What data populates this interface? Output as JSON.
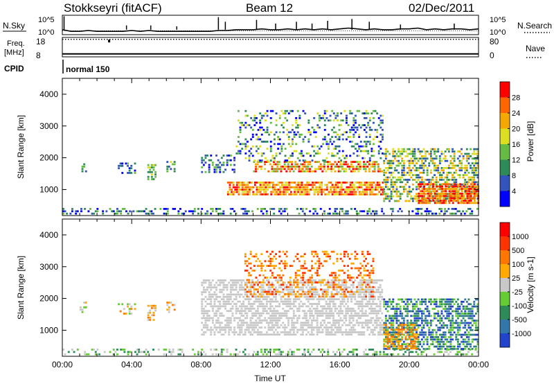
{
  "header": {
    "station": "Stokkseyri (fitACF)",
    "beam": "Beam 12",
    "date": "02/Dec/2011"
  },
  "chart_data": [
    {
      "type": "line",
      "panel": "noise",
      "labels": {
        "left_main": "N.Sky",
        "right_main": "N.Search",
        "left_top_tick": "10^5",
        "left_bottom_tick": "10^0",
        "right_top_tick": "10^5",
        "right_bottom_tick": "10^0"
      },
      "series": [
        {
          "x": [
            0,
            0.5,
            1,
            1.5,
            2,
            2.5,
            3,
            3.5,
            4,
            4.5,
            5,
            5.5,
            6,
            6.5,
            7,
            7.5,
            8,
            8.5,
            9,
            9.5,
            10,
            10.5,
            11,
            11.5,
            12,
            12.5,
            13,
            13.5,
            14,
            14.5,
            15,
            15.5,
            16,
            16.5,
            17,
            17.5,
            18,
            18.5,
            19,
            19.5,
            20,
            20.5,
            21,
            21.5,
            22,
            22.5,
            23,
            23.5,
            24
          ],
          "y": [
            0.3,
            0.2,
            0.2,
            0.25,
            0.2,
            0.2,
            0.2,
            0.2,
            0.25,
            0.2,
            0.25,
            0.2,
            0.2,
            0.2,
            0.2,
            0.2,
            0.2,
            0.2,
            0.25,
            0.25,
            0.3,
            0.3,
            0.3,
            0.35,
            0.3,
            0.3,
            0.35,
            0.3,
            0.35,
            0.3,
            0.35,
            0.3,
            0.35,
            0.4,
            0.35,
            0.3,
            0.35,
            0.3,
            0.3,
            0.35,
            0.35,
            0.4,
            0.3,
            0.35,
            0.3,
            0.35,
            0.35,
            0.3,
            0.35
          ]
        }
      ],
      "spikes": [
        {
          "x": 0.1,
          "y": 1.0
        },
        {
          "x": 3.7,
          "y": 0.5
        },
        {
          "x": 5.1,
          "y": 0.5
        },
        {
          "x": 6.6,
          "y": 0.45
        },
        {
          "x": 9.0,
          "y": 0.95
        },
        {
          "x": 9.4,
          "y": 0.7
        },
        {
          "x": 11.2,
          "y": 0.8
        },
        {
          "x": 12.3,
          "y": 0.6
        },
        {
          "x": 13.5,
          "y": 0.7
        },
        {
          "x": 14.4,
          "y": 0.6
        },
        {
          "x": 15.3,
          "y": 0.75
        },
        {
          "x": 16.7,
          "y": 0.85
        },
        {
          "x": 17.7,
          "y": 0.7
        },
        {
          "x": 19.5,
          "y": 0.55
        },
        {
          "x": 22.6,
          "y": 0.6
        }
      ]
    },
    {
      "type": "line",
      "panel": "frequency",
      "labels": {
        "left_main": "Freq.",
        "left_unit": "[MHz]",
        "right_main": "Nave",
        "left_top_tick": "18",
        "left_bottom_tick": "8",
        "right_top_tick": "80",
        "right_bottom_tick": "0"
      },
      "series": [
        {
          "name": "frequency",
          "x": [
            0,
            24
          ],
          "y": [
            9.5,
            9.5
          ]
        },
        {
          "name": "nave",
          "x": [
            0,
            24
          ],
          "y": [
            78,
            78
          ]
        }
      ],
      "outliers": [
        {
          "x": 2.7,
          "y": 16.5
        }
      ]
    },
    {
      "type": "table",
      "panel": "cpid",
      "labels": {
        "left_main": "CPID"
      },
      "segments": [
        {
          "start": 0,
          "end": 24,
          "label": "normal 150"
        }
      ]
    },
    {
      "type": "heatmap",
      "panel": "power",
      "ylabel": "Slant Range [km]",
      "ylim": [
        180,
        4500
      ],
      "yticks": [
        "1000",
        "2000",
        "3000",
        "4000"
      ],
      "xlim": [
        0,
        24
      ],
      "colorbar": {
        "label": "Power [dB]",
        "ticks": [
          "4",
          "8",
          "12",
          "16",
          "20",
          "24",
          "28"
        ],
        "colors": [
          "#0000ff",
          "#3355bb",
          "#2e8b57",
          "#66bb44",
          "#dddd22",
          "#f5a800",
          "#ff6600",
          "#ff0000"
        ]
      },
      "regions": [
        {
          "x0": 0,
          "x1": 24,
          "r0": 180,
          "r1": 420,
          "density": 0.35,
          "level_min": 0,
          "level_max": 3
        },
        {
          "x0": 1.0,
          "x1": 1.4,
          "r0": 1500,
          "r1": 1900,
          "density": 0.45,
          "level_min": 1,
          "level_max": 3
        },
        {
          "x0": 3.2,
          "x1": 4.2,
          "r0": 1500,
          "r1": 1850,
          "density": 0.4,
          "level_min": 0,
          "level_max": 3
        },
        {
          "x0": 4.9,
          "x1": 5.4,
          "r0": 1250,
          "r1": 1800,
          "density": 0.6,
          "level_min": 2,
          "level_max": 4
        },
        {
          "x0": 6.0,
          "x1": 6.5,
          "r0": 1500,
          "r1": 1900,
          "density": 0.5,
          "level_min": 1,
          "level_max": 4
        },
        {
          "x0": 8.0,
          "x1": 10.0,
          "r0": 1500,
          "r1": 2100,
          "density": 0.35,
          "level_min": 0,
          "level_max": 3
        },
        {
          "x0": 9.5,
          "x1": 18.5,
          "r0": 800,
          "r1": 1250,
          "density": 0.75,
          "level_min": 4,
          "level_max": 7
        },
        {
          "x0": 11.0,
          "x1": 18.5,
          "r0": 1550,
          "r1": 1900,
          "density": 0.65,
          "level_min": 3,
          "level_max": 7
        },
        {
          "x0": 10.0,
          "x1": 18.5,
          "r0": 1900,
          "r1": 3500,
          "density": 0.25,
          "level_min": 0,
          "level_max": 4
        },
        {
          "x0": 18.5,
          "x1": 24,
          "r0": 600,
          "r1": 2300,
          "density": 0.55,
          "level_min": 1,
          "level_max": 5
        },
        {
          "x0": 20.5,
          "x1": 24,
          "r0": 500,
          "r1": 1200,
          "density": 0.8,
          "level_min": 5,
          "level_max": 7
        }
      ]
    },
    {
      "type": "heatmap",
      "panel": "velocity",
      "ylabel": "Slant Range [km]",
      "xlabel": "Time UT",
      "ylim": [
        180,
        4500
      ],
      "yticks": [
        "1000",
        "2000",
        "3000",
        "4000"
      ],
      "xlim": [
        0,
        24
      ],
      "xticks": [
        "00:00",
        "04:00",
        "08:00",
        "12:00",
        "16:00",
        "20:00",
        "00:00"
      ],
      "colorbar": {
        "label": "Velocity [m s-1]",
        "ticks": [
          "1000",
          "500",
          "100",
          "25",
          "-25",
          "-100",
          "-500",
          "-1000"
        ],
        "colors": [
          "#2244cc",
          "#3377aa",
          "#2e8b57",
          "#66cc33",
          "#c8c8c8",
          "#ffaa00",
          "#ff7700",
          "#ff3300",
          "#ff0000"
        ]
      },
      "regions": [
        {
          "x0": 0,
          "x1": 24,
          "r0": 180,
          "r1": 420,
          "density": 0.3,
          "level_min": 2,
          "level_max": 4
        },
        {
          "x0": 1.0,
          "x1": 1.4,
          "r0": 1500,
          "r1": 1900,
          "density": 0.45,
          "level_min": 3,
          "level_max": 5
        },
        {
          "x0": 3.2,
          "x1": 4.2,
          "r0": 1500,
          "r1": 1850,
          "density": 0.4,
          "level_min": 3,
          "level_max": 6
        },
        {
          "x0": 4.9,
          "x1": 5.4,
          "r0": 1250,
          "r1": 1800,
          "density": 0.5,
          "level_min": 4,
          "level_max": 6
        },
        {
          "x0": 6.0,
          "x1": 6.5,
          "r0": 1500,
          "r1": 1900,
          "density": 0.45,
          "level_min": 4,
          "level_max": 6
        },
        {
          "x0": 8.0,
          "x1": 18.5,
          "r0": 800,
          "r1": 2600,
          "density": 0.6,
          "level_min": 4,
          "level_max": 4
        },
        {
          "x0": 10.5,
          "x1": 18.0,
          "r0": 2000,
          "r1": 3500,
          "density": 0.3,
          "level_min": 5,
          "level_max": 7
        },
        {
          "x0": 18.5,
          "x1": 24,
          "r0": 400,
          "r1": 2000,
          "density": 0.6,
          "level_min": 0,
          "level_max": 3
        },
        {
          "x0": 18.5,
          "x1": 20.5,
          "r0": 400,
          "r1": 1200,
          "density": 0.5,
          "level_min": 5,
          "level_max": 6
        }
      ]
    }
  ]
}
